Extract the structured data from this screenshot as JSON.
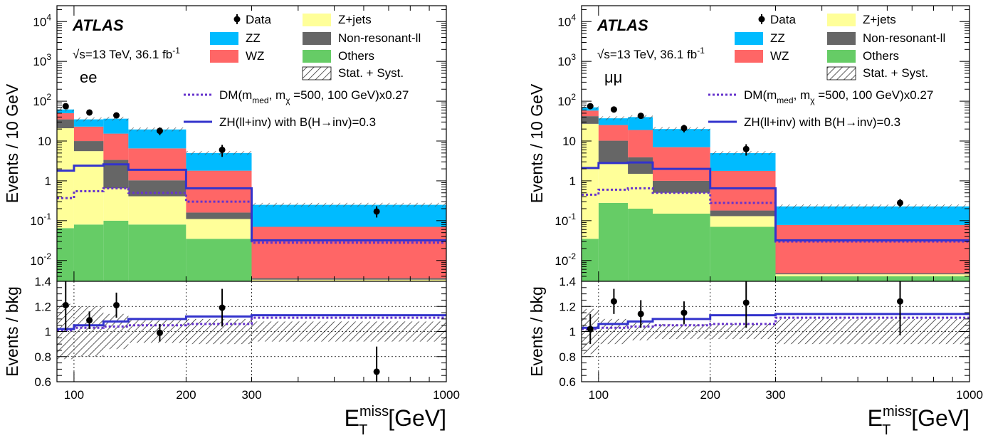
{
  "chart_data": [
    {
      "type": "bar",
      "subtype": "stacked-histogram-with-ratio",
      "channel": "ee",
      "experiment": "ATLAS",
      "energy_text": "√s=13 TeV,  36.1 fb",
      "lumi_exponent": "-1",
      "xlabel": "E",
      "xlabel_sub": "T",
      "xlabel_sup": "miss",
      "xlabel_unit": "[GeV]",
      "ylabel": "Events / 10 GeV",
      "ratio_ylabel": "Events / bkg",
      "x_scale": "log",
      "y_scale": "log",
      "xlim": [
        90,
        1000
      ],
      "ylim": [
        0.003,
        25000
      ],
      "ratio_ylim": [
        0.6,
        1.4
      ],
      "x_ticks": [
        100,
        200,
        300,
        1000
      ],
      "y_ticks": [
        "10^-2",
        "10^-1",
        "1",
        "10",
        "10^2",
        "10^3",
        "10^4"
      ],
      "ratio_ticks": [
        "0.6",
        "0.8",
        "1",
        "1.2",
        "1.4"
      ],
      "bin_edges": [
        90,
        100,
        120,
        140,
        200,
        300,
        1000
      ],
      "stack": [
        {
          "name": "Others",
          "color": "#66cc66",
          "values": [
            0.065,
            0.08,
            0.1,
            0.08,
            0.035,
            0.003
          ]
        },
        {
          "name": "Z+jets",
          "color": "#ffff99",
          "values": [
            20.9,
            5.5,
            0.55,
            0.33,
            0.075,
            0.0003
          ]
        },
        {
          "name": "Non-resonant-ll",
          "color": "#666666",
          "values": [
            14,
            4.4,
            2.7,
            0.62,
            0.05,
            0.0003
          ]
        },
        {
          "name": "WZ",
          "color": "#ff6666",
          "values": [
            15,
            13,
            12,
            5.5,
            1.64,
            0.0664
          ]
        },
        {
          "name": "ZZ",
          "color": "#00bbff",
          "values": [
            12,
            12,
            21,
            13,
            3.2,
            0.18
          ]
        }
      ],
      "uncertainty_label": "Stat. + Syst.",
      "data": {
        "name": "Data",
        "x": [
          95,
          110,
          130,
          170,
          250,
          650
        ],
        "y": [
          75,
          52,
          44,
          18,
          6,
          0.17
        ],
        "y_err_low": [
          12,
          8,
          7,
          4,
          2,
          0.05
        ],
        "y_err_high": [
          12,
          8,
          7,
          4,
          2,
          0.06
        ]
      },
      "signals": [
        {
          "name": "DM(m",
          "name_sub1": "med",
          "name_mid": ", m",
          "name_sub2": "χ",
          "name_end": " =500, 100 GeV)x0.27",
          "color": "#6633cc",
          "style": "dotted",
          "values": [
            0.37,
            0.55,
            0.65,
            0.5,
            0.3,
            0.028
          ]
        },
        {
          "name": "ZH(ll+inv) with B(H→inv)=0.3",
          "color": "#3333cc",
          "style": "solid",
          "values": [
            1.8,
            2.4,
            2.6,
            1.9,
            0.65,
            0.032
          ]
        }
      ],
      "ratio": {
        "data_x": [
          95,
          110,
          130,
          170,
          250,
          650
        ],
        "data_y": [
          1.21,
          1.09,
          1.21,
          0.99,
          1.19,
          0.68
        ],
        "data_err": [
          0.2,
          0.07,
          0.1,
          0.07,
          0.15,
          0.2
        ],
        "uncertainty": [
          0.22,
          0.2,
          0.14,
          0.09,
          0.1,
          0.08
        ],
        "signal_dm": [
          1.01,
          1.03,
          1.04,
          1.05,
          1.06,
          1.11
        ],
        "signal_zh": [
          1.02,
          1.05,
          1.08,
          1.1,
          1.12,
          1.13
        ]
      }
    },
    {
      "type": "bar",
      "subtype": "stacked-histogram-with-ratio",
      "channel": "μμ",
      "experiment": "ATLAS",
      "energy_text": "√s=13 TeV,  36.1 fb",
      "lumi_exponent": "-1",
      "xlabel": "E",
      "xlabel_sub": "T",
      "xlabel_sup": "miss",
      "xlabel_unit": "[GeV]",
      "ylabel": "Events / 10 GeV",
      "ratio_ylabel": "Events / bkg",
      "x_scale": "log",
      "y_scale": "log",
      "xlim": [
        90,
        1000
      ],
      "ylim": [
        0.003,
        25000
      ],
      "ratio_ylim": [
        0.6,
        1.4
      ],
      "x_ticks": [
        100,
        200,
        300,
        1000
      ],
      "y_ticks": [
        "10^-2",
        "10^-1",
        "1",
        "10",
        "10^2",
        "10^3",
        "10^4"
      ],
      "ratio_ticks": [
        "0.6",
        "0.8",
        "1",
        "1.2",
        "1.4"
      ],
      "bin_edges": [
        90,
        100,
        120,
        140,
        200,
        300,
        1000
      ],
      "stack": [
        {
          "name": "Others",
          "color": "#66cc66",
          "values": [
            0.035,
            0.28,
            0.2,
            0.15,
            0.07,
            0.004
          ]
        },
        {
          "name": "Z+jets",
          "color": "#ffff99",
          "values": [
            27,
            2.5,
            1.3,
            0.35,
            0.06,
            0.0005
          ]
        },
        {
          "name": "Non-resonant-ll",
          "color": "#666666",
          "values": [
            15,
            7.4,
            2.4,
            0.5,
            0.05,
            0.0003
          ]
        },
        {
          "name": "WZ",
          "color": "#ff6666",
          "values": [
            16,
            15,
            15,
            6,
            1.6,
            0.0732
          ]
        },
        {
          "name": "ZZ",
          "color": "#00bbff",
          "values": [
            12,
            12,
            21,
            13,
            3.2,
            0.15
          ]
        }
      ],
      "uncertainty_label": "Stat. + Syst.",
      "data": {
        "name": "Data",
        "x": [
          95,
          110,
          130,
          170,
          250,
          650
        ],
        "y": [
          75,
          62,
          43,
          21,
          6.3,
          0.28
        ],
        "y_err_low": [
          12,
          9,
          7,
          4.5,
          2,
          0.06
        ],
        "y_err_high": [
          12,
          9,
          7,
          4.5,
          2,
          0.07
        ]
      },
      "signals": [
        {
          "name": "DM(m",
          "name_sub1": "med",
          "name_mid": ", m",
          "name_sub2": "χ",
          "name_end": " =500, 100 GeV)x0.27",
          "color": "#6633cc",
          "style": "dotted",
          "values": [
            0.45,
            0.6,
            0.65,
            0.5,
            0.28,
            0.03
          ]
        },
        {
          "name": "ZH(ll+inv) with B(H→inv)=0.3",
          "color": "#3333cc",
          "style": "solid",
          "values": [
            2.1,
            2.8,
            2.9,
            2.0,
            0.65,
            0.032
          ]
        }
      ],
      "ratio": {
        "data_x": [
          95,
          110,
          130,
          170,
          250,
          650
        ],
        "data_y": [
          1.02,
          1.24,
          1.14,
          1.15,
          1.23,
          1.24
        ],
        "data_err": [
          0.12,
          0.1,
          0.11,
          0.09,
          0.2,
          0.27
        ],
        "uncertainty": [
          0.18,
          0.1,
          0.07,
          0.06,
          0.06,
          0.1
        ],
        "signal_dm": [
          1.02,
          1.03,
          1.04,
          1.05,
          1.06,
          1.11
        ],
        "signal_zh": [
          1.03,
          1.06,
          1.08,
          1.1,
          1.13,
          1.14
        ]
      }
    }
  ]
}
